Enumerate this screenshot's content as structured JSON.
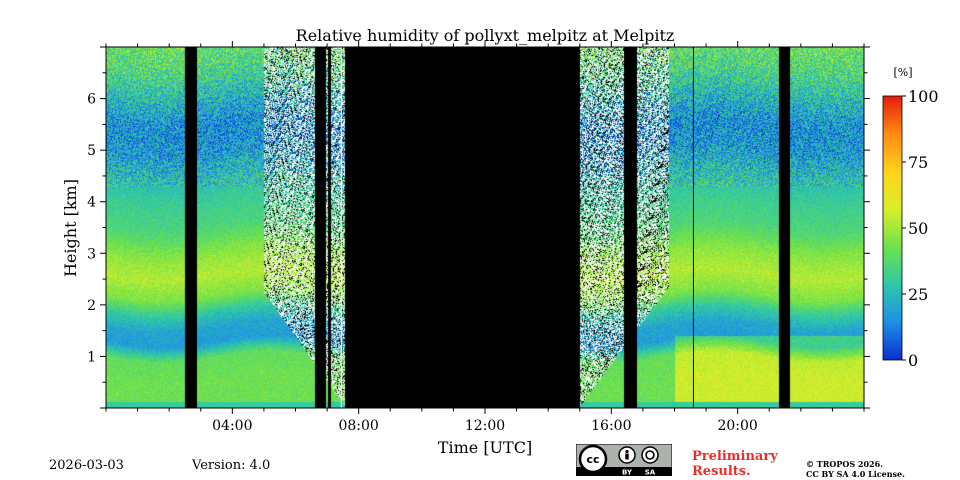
{
  "chart_data": {
    "type": "heatmap",
    "title": "Relative humidity of pollyxt_melpitz at Melpitz",
    "xlabel": "Time [UTC]",
    "ylabel": "Height [km]",
    "xlim": [
      0,
      24
    ],
    "ylim": [
      0,
      7
    ],
    "x_ticks": [
      {
        "value": 4,
        "label": "04:00"
      },
      {
        "value": 8,
        "label": "08:00"
      },
      {
        "value": 12,
        "label": "12:00"
      },
      {
        "value": 16,
        "label": "16:00"
      },
      {
        "value": 20,
        "label": "20:00"
      }
    ],
    "y_ticks": [
      {
        "value": 1,
        "label": "1"
      },
      {
        "value": 2,
        "label": "2"
      },
      {
        "value": 3,
        "label": "3"
      },
      {
        "value": 4,
        "label": "4"
      },
      {
        "value": 5,
        "label": "5"
      },
      {
        "value": 6,
        "label": "6"
      }
    ],
    "colorbar": {
      "unit": "[%]",
      "range": [
        0,
        100
      ],
      "ticks": [
        {
          "value": 0,
          "label": "0"
        },
        {
          "value": 25,
          "label": "25"
        },
        {
          "value": 50,
          "label": "50"
        },
        {
          "value": 75,
          "label": "75"
        },
        {
          "value": 100,
          "label": "100"
        }
      ],
      "colormap": [
        "#0a2fcf",
        "#1e8fe8",
        "#2fc7a8",
        "#6fe24a",
        "#d9ef2a",
        "#ffd21c",
        "#ff8a12",
        "#e81a0c"
      ]
    },
    "no_data_intervals": [
      [
        2.5,
        2.85
      ],
      [
        6.6,
        6.95
      ],
      [
        7.0,
        7.1
      ],
      [
        7.55,
        15.0
      ],
      [
        16.4,
        16.8
      ],
      [
        21.3,
        21.65
      ]
    ],
    "noise_regions": [
      [
        5.0,
        7.55,
        2.2
      ],
      [
        15.0,
        17.8,
        2.3
      ]
    ],
    "humidity_profile": [
      {
        "height": 0.2,
        "rh": 42
      },
      {
        "height": 0.6,
        "rh": 42
      },
      {
        "height": 1.0,
        "rh": 40
      },
      {
        "height": 1.3,
        "rh": 18
      },
      {
        "height": 1.6,
        "rh": 20
      },
      {
        "height": 1.9,
        "rh": 30
      },
      {
        "height": 2.2,
        "rh": 45
      },
      {
        "height": 2.6,
        "rh": 52
      },
      {
        "height": 3.0,
        "rh": 47
      },
      {
        "height": 3.5,
        "rh": 36
      },
      {
        "height": 4.0,
        "rh": 32
      },
      {
        "height": 4.5,
        "rh": 26
      },
      {
        "height": 5.0,
        "rh": 18
      },
      {
        "height": 5.5,
        "rh": 16
      },
      {
        "height": 6.0,
        "rh": 24
      },
      {
        "height": 6.5,
        "rh": 34
      },
      {
        "height": 7.0,
        "rh": 40
      }
    ]
  },
  "footer": {
    "date": "2026-03-03",
    "version": "Version: 4.0",
    "preliminary_line1": "Preliminary",
    "preliminary_line2": "Results.",
    "copyright_line1": "© TROPOS 2026.",
    "copyright_line2": "CC BY SA 4.0 License.",
    "license_badge_label": "cc",
    "license_by": "BY",
    "license_sa": "SA"
  }
}
